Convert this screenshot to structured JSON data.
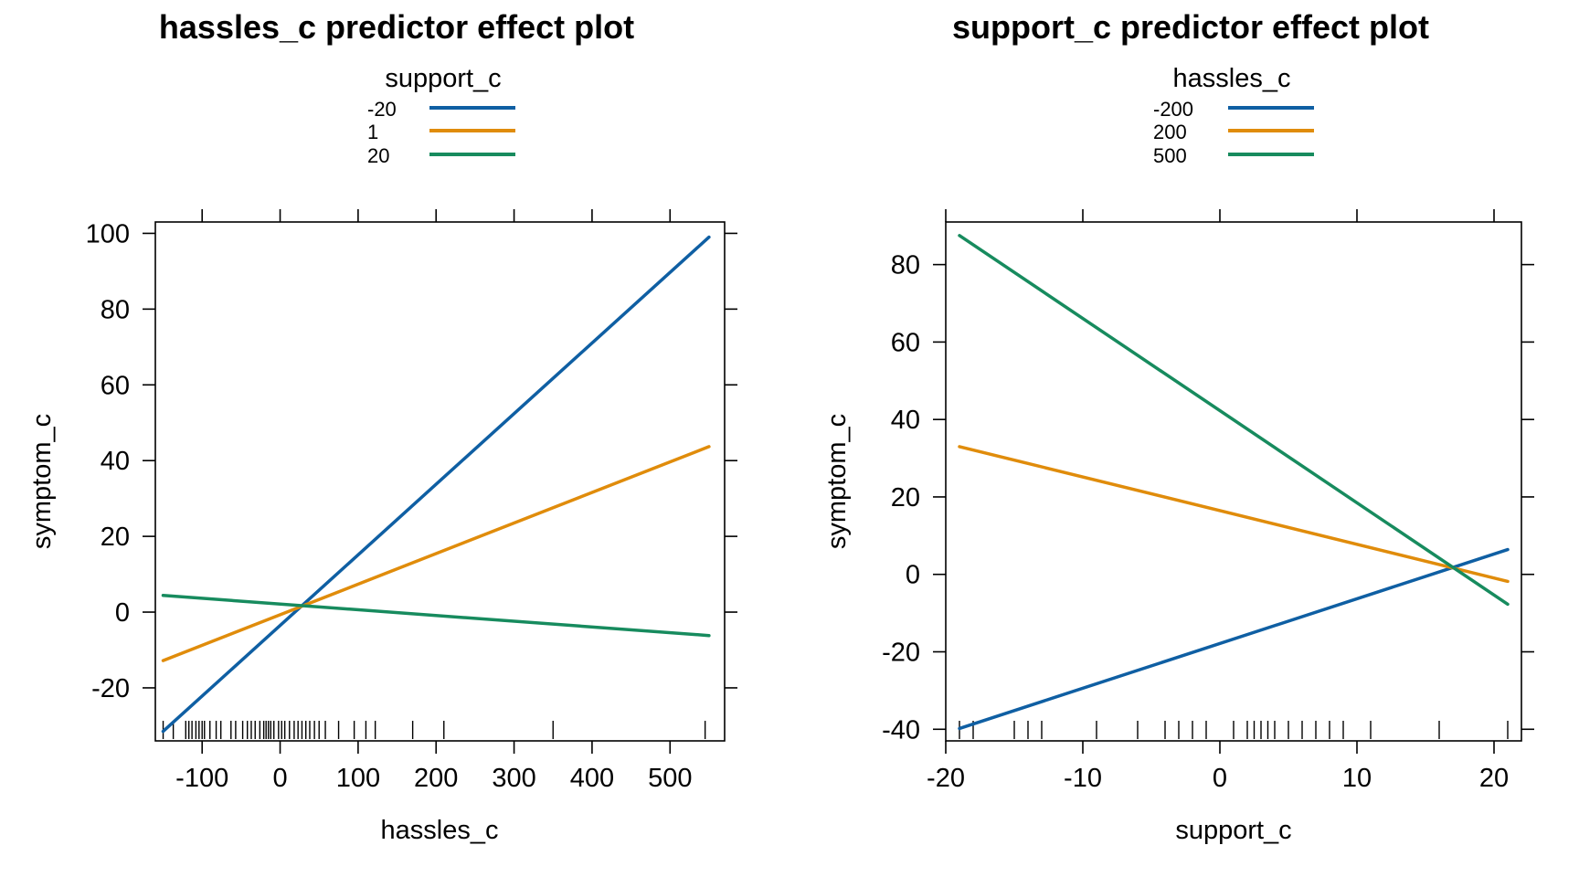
{
  "chart_data": [
    {
      "type": "line",
      "title": "hassles_c predictor effect plot",
      "xlabel": "hassles_c",
      "ylabel": "symptom_c",
      "legend_title": "support_c",
      "legend_position": "top-center",
      "grid": false,
      "xlim": [
        -160,
        570
      ],
      "ylim": [
        -34,
        103
      ],
      "xticks": [
        -100,
        0,
        100,
        200,
        300,
        400,
        500
      ],
      "yticks": [
        -20,
        0,
        20,
        40,
        60,
        80,
        100
      ],
      "series": [
        {
          "name": "-20",
          "color": "#0f5fa3",
          "x": [
            -150,
            550
          ],
          "y": [
            -31.5,
            99.0
          ]
        },
        {
          "name": "1",
          "color": "#e08c0b",
          "x": [
            -150,
            550
          ],
          "y": [
            -12.8,
            43.7
          ]
        },
        {
          "name": "20",
          "color": "#178b5e",
          "x": [
            -150,
            550
          ],
          "y": [
            4.4,
            -6.2
          ]
        }
      ],
      "rug": [
        -150,
        -137,
        -121,
        -117,
        -113,
        -108,
        -104,
        -100,
        -97,
        -90,
        -82,
        -76,
        -63,
        -57,
        -48,
        -42,
        -37,
        -32,
        -26,
        -21,
        -18,
        -15,
        -12,
        -8,
        -2,
        2,
        6,
        12,
        18,
        23,
        28,
        33,
        38,
        44,
        50,
        58,
        75,
        95,
        110,
        122,
        170,
        210,
        350,
        545
      ]
    },
    {
      "type": "line",
      "title": "support_c predictor effect plot",
      "xlabel": "support_c",
      "ylabel": "symptom_c",
      "legend_title": "hassles_c",
      "legend_position": "top-center",
      "grid": false,
      "xlim": [
        -20,
        22
      ],
      "ylim": [
        -43,
        91
      ],
      "xticks": [
        -20,
        -10,
        0,
        10,
        20
      ],
      "yticks": [
        -40,
        -20,
        0,
        20,
        40,
        60,
        80
      ],
      "series": [
        {
          "name": "-200",
          "color": "#0f5fa3",
          "x": [
            -19,
            21
          ],
          "y": [
            -39.8,
            6.4
          ]
        },
        {
          "name": "200",
          "color": "#e08c0b",
          "x": [
            -19,
            21
          ],
          "y": [
            33.0,
            -1.8
          ]
        },
        {
          "name": "500",
          "color": "#178b5e",
          "x": [
            -19,
            21
          ],
          "y": [
            87.5,
            -7.7
          ]
        }
      ],
      "rug": [
        -19,
        -18,
        -15,
        -14,
        -13,
        -9,
        -6,
        -4,
        -3,
        -2,
        -1,
        1,
        2,
        2.5,
        3,
        3.5,
        4,
        5,
        6,
        7,
        8,
        9,
        11,
        16,
        21
      ]
    }
  ]
}
